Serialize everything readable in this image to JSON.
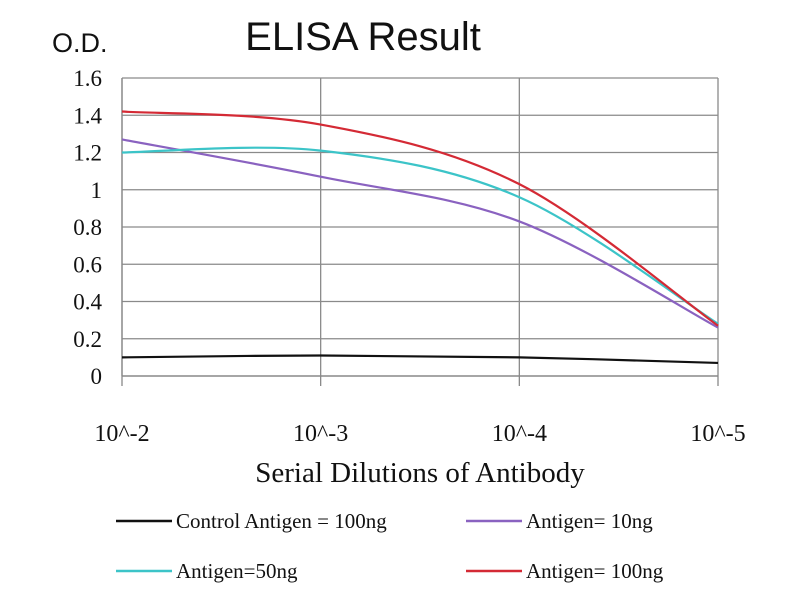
{
  "chart_data": {
    "type": "line",
    "title": "ELISA Result",
    "ylabel": "O.D.",
    "xlabel": "Serial Dilutions of Antibody",
    "categories": [
      "10^-2",
      "10^-3",
      "10^-4",
      "10^-5"
    ],
    "ylim": [
      0,
      1.6
    ],
    "yticks": [
      "0",
      "0.2",
      "0.4",
      "0.6",
      "0.8",
      "1",
      "1.2",
      "1.4",
      "1.6"
    ],
    "grid": true,
    "legend_position": "bottom",
    "series": [
      {
        "name": "Control Antigen = 100ng",
        "color": "#111111",
        "values": [
          0.1,
          0.11,
          0.1,
          0.07
        ]
      },
      {
        "name": "Antigen= 10ng",
        "color": "#8a62c0",
        "values": [
          1.27,
          1.07,
          0.83,
          0.26
        ]
      },
      {
        "name": "Antigen=50ng",
        "color": "#3cc4c8",
        "values": [
          1.2,
          1.21,
          0.96,
          0.28
        ]
      },
      {
        "name": "Antigen= 100ng",
        "color": "#d42a35",
        "values": [
          1.42,
          1.35,
          1.03,
          0.27
        ]
      }
    ]
  }
}
